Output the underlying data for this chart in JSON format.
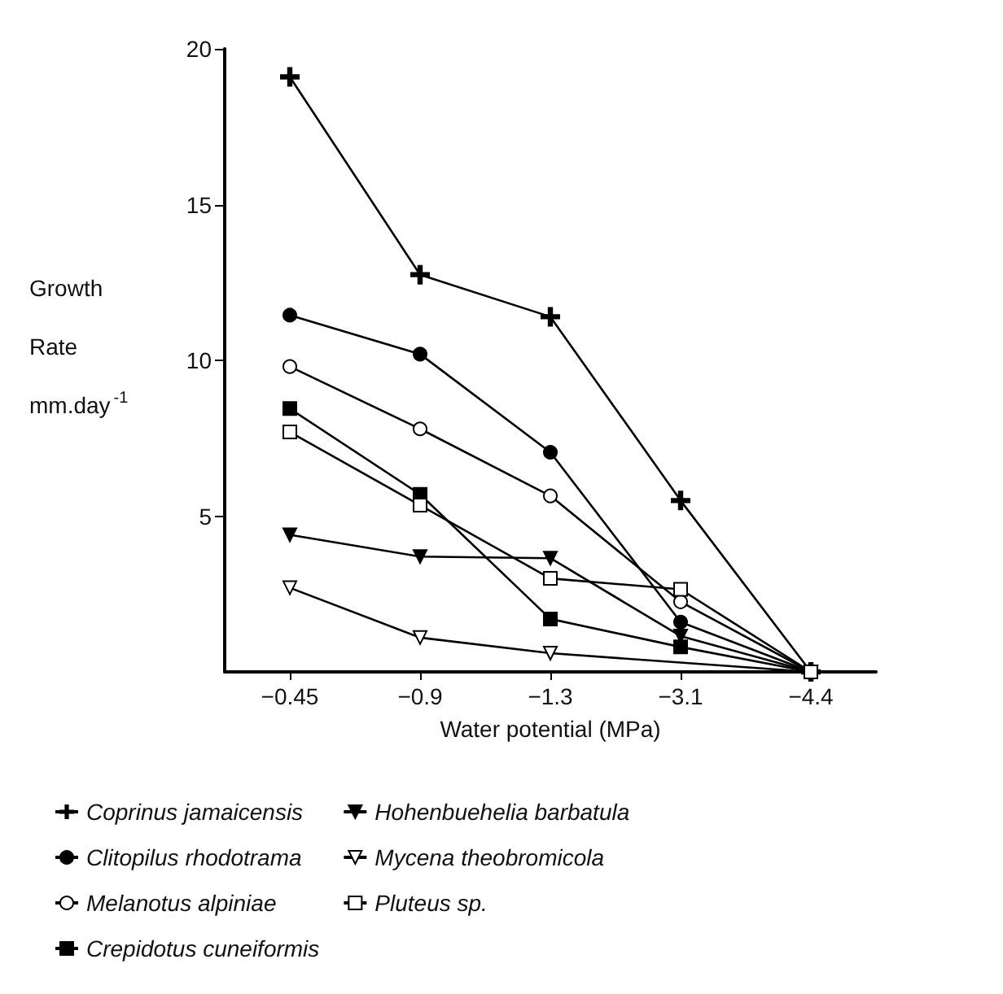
{
  "chart_data": {
    "type": "line",
    "xlabel": "Water potential (MPa)",
    "ylabel": "Growth\nRate\nmm.day$^{-1}$",
    "categories": [
      "−0.45",
      "−0.9",
      "−1.3",
      "−3.1",
      "−4.4"
    ],
    "ylim": [
      0,
      20
    ],
    "yticks": [
      5,
      10,
      15,
      20
    ],
    "grid": false,
    "legend": "bottom",
    "series": [
      {
        "name": "Coprinus jamaicensis",
        "color": "#000000",
        "marker": "cross",
        "values": [
          19.1,
          12.75,
          11.4,
          5.5,
          0
        ]
      },
      {
        "name": "Clitopilus rhodotrama",
        "color": "#000000",
        "marker": "circle",
        "values": [
          11.45,
          10.2,
          7.05,
          1.6,
          0
        ]
      },
      {
        "name": "Melanotus alpiniae",
        "color": "#000000",
        "marker": "circle-open",
        "values": [
          9.8,
          7.8,
          5.65,
          2.25,
          0
        ]
      },
      {
        "name": "Crepidotus cuneiformis",
        "color": "#000000",
        "marker": "square",
        "values": [
          8.45,
          5.7,
          1.7,
          0.8,
          0
        ]
      },
      {
        "name": "Hohenbuehelia barbatula",
        "color": "#000000",
        "marker": "triangle-down",
        "values": [
          4.4,
          3.7,
          3.65,
          1.15,
          0
        ]
      },
      {
        "name": "Mycena theobromicola",
        "color": "#000000",
        "marker": "triangle-down-open",
        "values": [
          2.7,
          1.1,
          0.6,
          null,
          0
        ]
      },
      {
        "name": "Pluteus sp.",
        "color": "#000000",
        "marker": "square-open",
        "values": [
          7.7,
          5.35,
          3.0,
          2.65,
          0
        ]
      }
    ]
  }
}
